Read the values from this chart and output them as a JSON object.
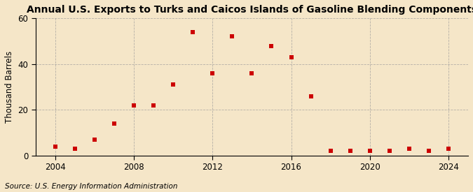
{
  "title": "Annual U.S. Exports to Turks and Caicos Islands of Gasoline Blending Components",
  "ylabel": "Thousand Barrels",
  "source": "Source: U.S. Energy Information Administration",
  "years": [
    2004,
    2005,
    2006,
    2007,
    2008,
    2009,
    2010,
    2011,
    2012,
    2013,
    2014,
    2015,
    2016,
    2017,
    2018,
    2019,
    2020,
    2021,
    2022,
    2023,
    2024
  ],
  "values": [
    4,
    3,
    7,
    14,
    22,
    22,
    31,
    54,
    36,
    52,
    36,
    48,
    43,
    26,
    2,
    2,
    2,
    2,
    3,
    2,
    3
  ],
  "marker_color": "#cc0000",
  "background_color": "#f5e6c8",
  "grid_color": "#999999",
  "ylim": [
    0,
    60
  ],
  "yticks": [
    0,
    20,
    40,
    60
  ],
  "xticks": [
    2004,
    2008,
    2012,
    2016,
    2020,
    2024
  ],
  "xlim": [
    2003,
    2025
  ],
  "title_fontsize": 10,
  "label_fontsize": 8.5,
  "tick_fontsize": 8.5,
  "source_fontsize": 7.5
}
